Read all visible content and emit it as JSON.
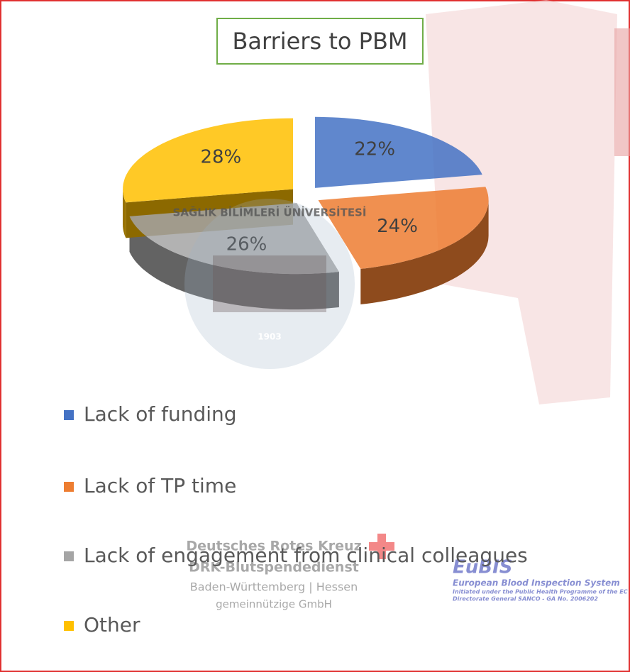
{
  "chart_data": {
    "type": "pie",
    "title": "Barriers to PBM",
    "categories": [
      "Lack of funding",
      "Lack of TP time",
      "Lack of engagement from clinical colleagues",
      "Other"
    ],
    "values": [
      22,
      24,
      26,
      28
    ],
    "value_labels": [
      "22%",
      "24%",
      "26%",
      "28%"
    ],
    "colors": [
      "#4472c4",
      "#ed7d31",
      "#a5a5a5",
      "#ffc000"
    ],
    "legend": "bottom"
  },
  "watermarks": {
    "seal": "SAĞLIK BİLİMLERİ ÜNİVERSİTESİ",
    "seal_year": "1903",
    "drk": [
      "Deutsches Rotes Kreuz",
      "DRK-Blutspendedienst",
      "Baden-Württemberg | Hessen",
      "gemeinnützige GmbH"
    ],
    "eubis": [
      "EuBIS",
      "European Blood Inspection System",
      "Initiated under the Public Health Programme of the EC",
      "Directorate General SANCO - GA No. 2006202"
    ]
  }
}
